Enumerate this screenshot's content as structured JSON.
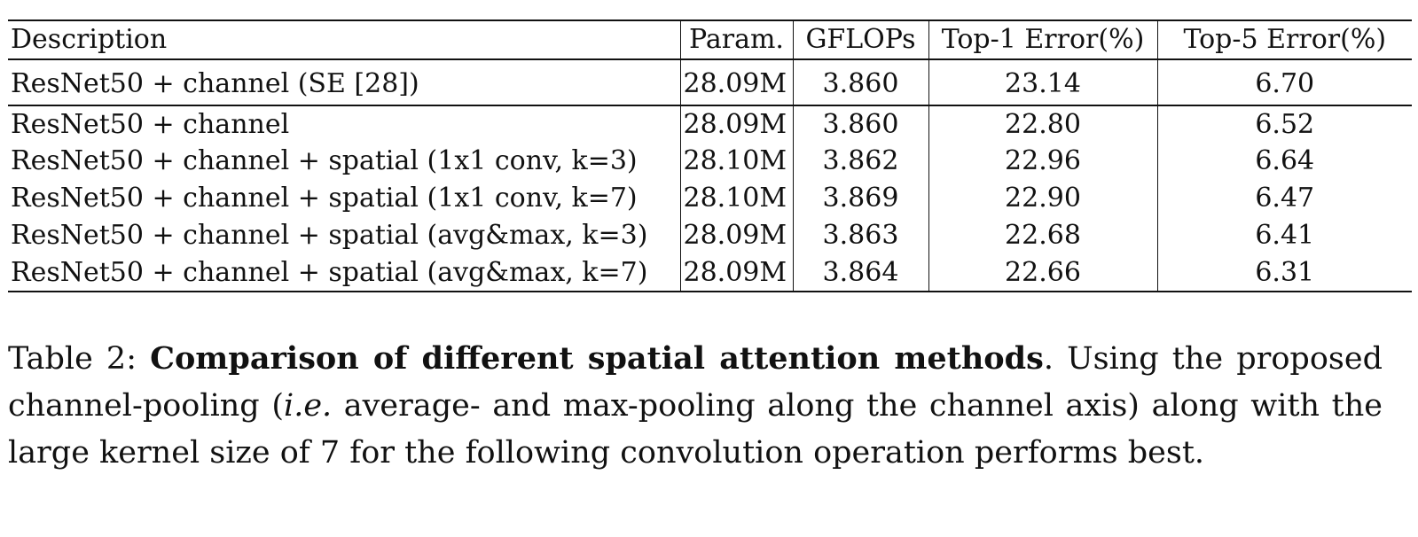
{
  "table": {
    "headers": {
      "description": "Description",
      "param": "Param.",
      "gflops": "GFLOPs",
      "top1": "Top-1 Error(%)",
      "top5": "Top-5 Error(%)"
    },
    "rows": [
      {
        "description": "ResNet50 + channel (SE [28])",
        "param": "28.09M",
        "gflops": "3.860",
        "top1": "23.14",
        "top5": "6.70"
      },
      {
        "description": "ResNet50 + channel",
        "param": "28.09M",
        "gflops": "3.860",
        "top1": "22.80",
        "top5": "6.52"
      },
      {
        "description": "ResNet50 + channel + spatial (1x1 conv, k=3)",
        "param": "28.10M",
        "gflops": "3.862",
        "top1": "22.96",
        "top5": "6.64"
      },
      {
        "description": "ResNet50 + channel + spatial (1x1 conv, k=7)",
        "param": "28.10M",
        "gflops": "3.869",
        "top1": "22.90",
        "top5": "6.47"
      },
      {
        "description": "ResNet50 + channel + spatial (avg&max, k=3)",
        "param": "28.09M",
        "gflops": "3.863",
        "top1": "22.68",
        "top5": "6.41"
      },
      {
        "description": "ResNet50 + channel + spatial (avg&max, k=7)",
        "param": "28.09M",
        "gflops": "3.864",
        "top1": "22.66",
        "top5": "6.31"
      }
    ]
  },
  "caption": {
    "label": "Table 2: ",
    "title": "Comparison of different spatial attention methods",
    "text_1": ". Using the proposed channel-pooling (",
    "ie": "i.e.",
    "text_2": " average- and max-pooling along the channel axis) along with the large kernel size of 7 for the following convolution operation performs best."
  }
}
